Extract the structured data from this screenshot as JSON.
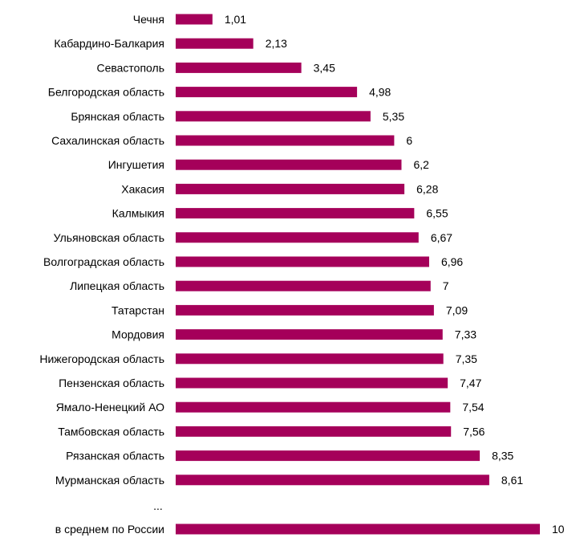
{
  "chart_data": {
    "type": "bar",
    "orientation": "horizontal",
    "categories": [
      "Чечня",
      "Кабардино-Балкария",
      "Севастополь",
      "Белгородская область",
      "Брянская область",
      "Сахалинская область",
      "Ингушетия",
      "Хакасия",
      "Калмыкия",
      "Ульяновская область",
      "Волгоградская область",
      "Липецкая область",
      "Татарстан",
      "Мордовия",
      "Нижегородская область",
      "Пензенская область",
      "Ямало-Ненецкий АО",
      "Тамбовская область",
      "Рязанская область",
      "Мурманская область"
    ],
    "values": [
      1.01,
      2.13,
      3.45,
      4.98,
      5.35,
      6,
      6.2,
      6.28,
      6.55,
      6.67,
      6.96,
      7,
      7.09,
      7.33,
      7.35,
      7.47,
      7.54,
      7.56,
      8.35,
      8.61
    ],
    "value_labels": [
      "1,01",
      "2,13",
      "3,45",
      "4,98",
      "5,35",
      "6",
      "6,2",
      "6,28",
      "6,55",
      "6,67",
      "6,96",
      "7",
      "7,09",
      "7,33",
      "7,35",
      "7,47",
      "7,54",
      "7,56",
      "8,35",
      "8,61"
    ],
    "ellipsis": "...",
    "average": {
      "label": "в среднем по России",
      "value": 10,
      "value_label": "10"
    },
    "xlim": [
      0,
      10
    ],
    "grid": false,
    "axes_visible": false,
    "bar_color": "#A5005A",
    "title": "",
    "xlabel": "",
    "ylabel": ""
  }
}
